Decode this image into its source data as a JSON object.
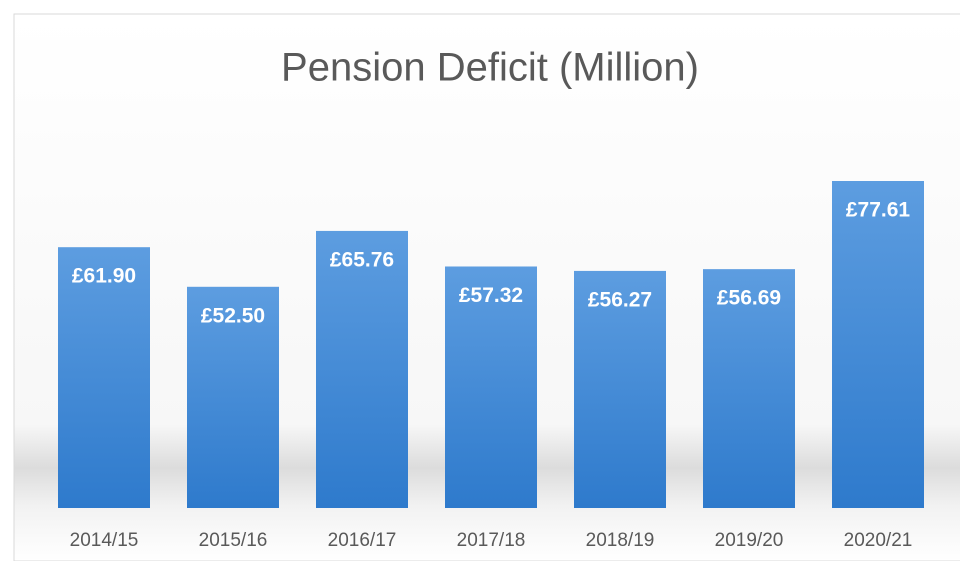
{
  "chart_data": {
    "type": "bar",
    "title": "Pension Deficit (Million)",
    "categories": [
      "2014/15",
      "2015/16",
      "2016/17",
      "2017/18",
      "2018/19",
      "2019/20",
      "2020/21"
    ],
    "values": [
      61.9,
      52.5,
      65.76,
      57.32,
      56.27,
      56.69,
      77.61
    ],
    "value_labels": [
      "£61.90",
      "£52.50",
      "£65.76",
      "£57.32",
      "£56.27",
      "£56.69",
      "£77.61"
    ],
    "color": "#3d87d4"
  }
}
